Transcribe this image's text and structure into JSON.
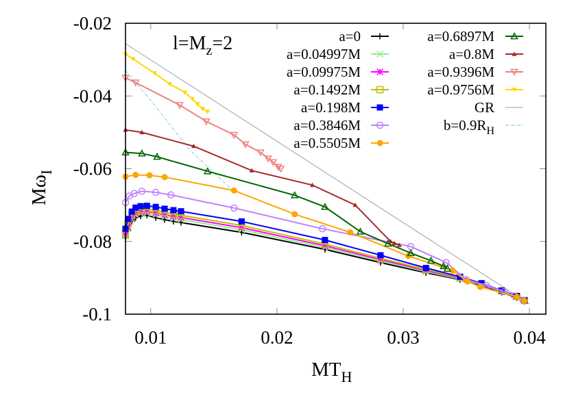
{
  "chart_data": {
    "type": "line",
    "title": "",
    "annotation": {
      "text": "l=M",
      "sub": "z",
      "tail": "=2",
      "full": "l=M_z=2"
    },
    "xlabel": "MT_H",
    "xlabel_main": "MT",
    "xlabel_sub": "H",
    "ylabel": "Mω_I",
    "ylabel_main": "Mω",
    "ylabel_sub": "I",
    "xlim": [
      0.008,
      0.0413
    ],
    "ylim": [
      -0.1,
      -0.02
    ],
    "xticks": [
      0.01,
      0.02,
      0.03,
      0.04
    ],
    "xtick_labels": [
      "0.01",
      "0.02",
      "0.03",
      "0.04"
    ],
    "yticks": [
      -0.02,
      -0.04,
      -0.06,
      -0.08,
      -0.1
    ],
    "ytick_labels": [
      "-0.02",
      "-0.04",
      "-0.06",
      "-0.08",
      "-0.1"
    ],
    "grid": false,
    "legend_position": "upper right, two columns",
    "series": [
      {
        "name": "a=0",
        "color": "#000000",
        "marker": "plus",
        "x": [
          0.008,
          0.0082,
          0.0085,
          0.0088,
          0.0092,
          0.0097,
          0.0104,
          0.0111,
          0.0118,
          0.0124,
          0.0172,
          0.0238,
          0.0282,
          0.0318,
          0.0345,
          0.0362,
          0.0378,
          0.039,
          0.0396
        ],
        "y": [
          -0.079,
          -0.077,
          -0.0745,
          -0.0735,
          -0.073,
          -0.0728,
          -0.0735,
          -0.074,
          -0.0745,
          -0.0748,
          -0.0775,
          -0.0822,
          -0.0858,
          -0.0886,
          -0.0905,
          -0.092,
          -0.094,
          -0.0955,
          -0.0965
        ]
      },
      {
        "name": "a=0.04997M",
        "color": "#90ee90",
        "marker": "cross",
        "x": [
          0.008,
          0.0082,
          0.0085,
          0.0088,
          0.0092,
          0.0097,
          0.0104,
          0.0111,
          0.0118,
          0.0124,
          0.0172,
          0.0238,
          0.0282,
          0.0318,
          0.0345,
          0.0362,
          0.0378,
          0.039,
          0.0396
        ],
        "y": [
          -0.0785,
          -0.0765,
          -0.074,
          -0.0728,
          -0.0723,
          -0.0722,
          -0.0727,
          -0.0732,
          -0.0737,
          -0.074,
          -0.0768,
          -0.0817,
          -0.0854,
          -0.0883,
          -0.0903,
          -0.0918,
          -0.0938,
          -0.0953,
          -0.0964
        ]
      },
      {
        "name": "a=0.09975M",
        "color": "#ff00ff",
        "marker": "star",
        "x": [
          0.008,
          0.0082,
          0.0085,
          0.0088,
          0.0092,
          0.0097,
          0.0104,
          0.0111,
          0.0118,
          0.0124,
          0.0172,
          0.0238,
          0.0282,
          0.0318,
          0.0345,
          0.0362,
          0.0378,
          0.039,
          0.0396
        ],
        "y": [
          -0.078,
          -0.076,
          -0.0735,
          -0.0722,
          -0.0718,
          -0.0717,
          -0.0722,
          -0.0727,
          -0.0731,
          -0.0734,
          -0.0762,
          -0.0812,
          -0.085,
          -0.088,
          -0.0901,
          -0.0917,
          -0.0937,
          -0.0952,
          -0.0963
        ]
      },
      {
        "name": "a=0.1492M",
        "color": "#c0c000",
        "marker": "open-square",
        "x": [
          0.008,
          0.0082,
          0.0085,
          0.0088,
          0.0092,
          0.0097,
          0.0104,
          0.0111,
          0.0118,
          0.0124,
          0.0172,
          0.0238,
          0.0282,
          0.0318,
          0.0345,
          0.0362,
          0.0378,
          0.039,
          0.0396
        ],
        "y": [
          -0.0778,
          -0.0752,
          -0.0728,
          -0.0716,
          -0.0712,
          -0.0711,
          -0.0715,
          -0.072,
          -0.0725,
          -0.0728,
          -0.0756,
          -0.0807,
          -0.0846,
          -0.0877,
          -0.0899,
          -0.0916,
          -0.0936,
          -0.0951,
          -0.0962
        ]
      },
      {
        "name": "a=0.198M",
        "color": "#0000ff",
        "marker": "filled-square",
        "x": [
          0.008,
          0.0082,
          0.0085,
          0.0088,
          0.0092,
          0.0097,
          0.0104,
          0.0111,
          0.0118,
          0.0124,
          0.0172,
          0.0238,
          0.0282,
          0.0318,
          0.0345,
          0.0362,
          0.0378,
          0.039,
          0.0396
        ],
        "y": [
          -0.0765,
          -0.0738,
          -0.0718,
          -0.0707,
          -0.0703,
          -0.0702,
          -0.0705,
          -0.071,
          -0.0714,
          -0.0717,
          -0.0745,
          -0.0796,
          -0.0838,
          -0.0873,
          -0.0897,
          -0.0915,
          -0.0935,
          -0.095,
          -0.0962
        ]
      },
      {
        "name": "a=0.3846M",
        "color": "#bf80ff",
        "marker": "open-circle",
        "x": [
          0.008,
          0.0083,
          0.0087,
          0.0093,
          0.0104,
          0.0116,
          0.0166,
          0.0236,
          0.0306,
          0.0334,
          0.035,
          0.0366,
          0.038,
          0.0388,
          0.0395
        ],
        "y": [
          -0.0693,
          -0.0675,
          -0.0668,
          -0.0662,
          -0.0665,
          -0.0672,
          -0.0708,
          -0.0765,
          -0.0814,
          -0.0858,
          -0.0905,
          -0.0921,
          -0.0938,
          -0.095,
          -0.0962
        ]
      },
      {
        "name": "a=0.5505M",
        "color": "#ffa500",
        "marker": "filled-circle",
        "x": [
          0.008,
          0.0088,
          0.0099,
          0.0111,
          0.0166,
          0.0214,
          0.0258,
          0.0304,
          0.0339,
          0.0351,
          0.0361,
          0.039,
          0.0396
        ],
        "y": [
          -0.0622,
          -0.0617,
          -0.0618,
          -0.0623,
          -0.066,
          -0.0725,
          -0.0775,
          -0.084,
          -0.088,
          -0.091,
          -0.0925,
          -0.0952,
          -0.0963
        ]
      },
      {
        "name": "a=0.6897M",
        "color": "#006400",
        "marker": "open-triangle-up",
        "x": [
          0.008,
          0.0093,
          0.0105,
          0.0145,
          0.0214,
          0.0238,
          0.0266,
          0.0288,
          0.0306,
          0.0322,
          0.0332,
          0.0335
        ],
        "y": [
          -0.0555,
          -0.0558,
          -0.0567,
          -0.0607,
          -0.0673,
          -0.0705,
          -0.0773,
          -0.0806,
          -0.0832,
          -0.0853,
          -0.0868,
          -0.0875
        ]
      },
      {
        "name": "a=0.8M",
        "color": "#a52a2a",
        "marker": "filled-triangle-up",
        "x": [
          0.008,
          0.0093,
          0.0134,
          0.018,
          0.0228,
          0.0262,
          0.029,
          0.0293,
          0.0297
        ],
        "y": [
          -0.0493,
          -0.05,
          -0.0538,
          -0.0605,
          -0.0645,
          -0.07,
          -0.08,
          -0.0805,
          -0.081
        ]
      },
      {
        "name": "a=0.9396M",
        "color": "#f08080",
        "marker": "open-triangle-down",
        "x": [
          0.008,
          0.0088,
          0.0123,
          0.0144,
          0.0166,
          0.0175,
          0.0187,
          0.0193,
          0.0197,
          0.0201,
          0.0203
        ],
        "y": [
          -0.035,
          -0.0363,
          -0.0425,
          -0.047,
          -0.0507,
          -0.0533,
          -0.0555,
          -0.0572,
          -0.0582,
          -0.0595,
          -0.06
        ]
      },
      {
        "name": "a=0.9756M",
        "color": "#ffd700",
        "marker": "filled-triangle-down",
        "x": [
          0.008,
          0.0086,
          0.0103,
          0.0115,
          0.0127,
          0.0133,
          0.0137,
          0.0141,
          0.0145
        ],
        "y": [
          -0.0285,
          -0.0298,
          -0.0337,
          -0.0367,
          -0.039,
          -0.0408,
          -0.0422,
          -0.0435,
          -0.0443
        ]
      },
      {
        "name": "GR",
        "color": "#b0b0b0",
        "marker": "none",
        "x": [
          0.008,
          0.04
        ],
        "y": [
          -0.0256,
          -0.0972
        ]
      },
      {
        "name": "b=0.9R_H",
        "color": "#7fcfe0",
        "marker": "none",
        "dash": "dot-dash",
        "x": [
          0.008,
          0.0102,
          0.013,
          0.0165
        ],
        "y": [
          -0.033,
          -0.042,
          -0.0545,
          -0.066
        ]
      }
    ]
  },
  "legend": {
    "col1": [
      {
        "label": "a=0",
        "color": "#000000",
        "marker": "plus"
      },
      {
        "label": "a=0.04997M",
        "color": "#90ee90",
        "marker": "cross"
      },
      {
        "label": "a=0.09975M",
        "color": "#ff00ff",
        "marker": "star"
      },
      {
        "label": "a=0.1492M",
        "color": "#c0c000",
        "marker": "open-square"
      },
      {
        "label": "a=0.198M",
        "color": "#0000ff",
        "marker": "filled-square"
      },
      {
        "label": "a=0.3846M",
        "color": "#bf80ff",
        "marker": "open-circle"
      },
      {
        "label": "a=0.5505M",
        "color": "#ffa500",
        "marker": "filled-circle"
      }
    ],
    "col2": [
      {
        "label": "a=0.6897M",
        "color": "#006400",
        "marker": "open-triangle-up"
      },
      {
        "label": "a=0.8M",
        "color": "#a52a2a",
        "marker": "filled-triangle-up"
      },
      {
        "label": "a=0.9396M",
        "color": "#f08080",
        "marker": "open-triangle-down"
      },
      {
        "label": "a=0.9756M",
        "color": "#ffd700",
        "marker": "filled-triangle-down"
      },
      {
        "label": "GR",
        "color": "#b0b0b0",
        "marker": "none"
      },
      {
        "label": "b=0.9R",
        "sub": "H",
        "color": "#7fcfe0",
        "marker": "none"
      }
    ]
  }
}
